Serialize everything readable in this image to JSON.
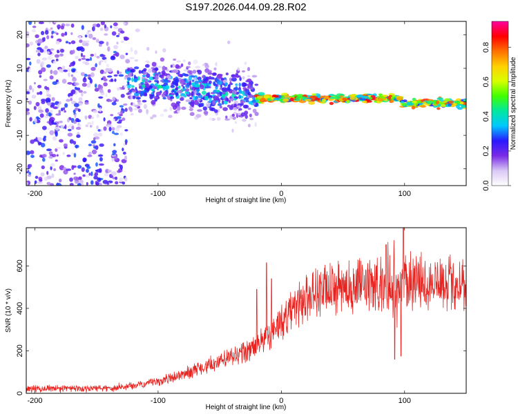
{
  "title": "S197.2026.044.09.28.R02",
  "chart_data": [
    {
      "type": "heatmap",
      "name": "spectrogram",
      "xlabel": "Height of straight line (km)",
      "ylabel": "Frequency (Hz)",
      "xlim": [
        -207,
        150
      ],
      "ylim": [
        -25,
        24
      ],
      "xticks": [
        -200,
        -100,
        0,
        100
      ],
      "yticks": [
        -20,
        -10,
        0,
        10,
        20
      ],
      "colorbar": {
        "label": "Normalized spectral amplitude",
        "range": [
          0,
          0.95
        ],
        "ticks": [
          0.0,
          0.2,
          0.4,
          0.6,
          0.8
        ],
        "colors": [
          "#ffffff",
          "#d9c8f5",
          "#7a2be6",
          "#2a18ff",
          "#00c8ff",
          "#00e8a0",
          "#40ff00",
          "#d8ff00",
          "#ffd000",
          "#ff7000",
          "#ff0000",
          "#ff00a0"
        ]
      },
      "regions": [
        {
          "x_range": [
            -207,
            -125
          ],
          "description": "broadband noise",
          "freq_center": 0,
          "freq_spread": 24,
          "amplitude": 0.12
        },
        {
          "x_range": [
            -125,
            -20
          ],
          "description": "signal emerging",
          "freq_center_start": 6,
          "freq_center_end": 1.5,
          "freq_spread": 4,
          "amplitude": 0.3
        },
        {
          "x_range": [
            -20,
            98
          ],
          "description": "strong signal",
          "freq_center": 1,
          "freq_spread": 1,
          "amplitude": 0.75
        },
        {
          "x_range": [
            98,
            150
          ],
          "description": "stable signal",
          "freq_center": -0.5,
          "freq_spread": 1,
          "amplitude": 0.7
        }
      ]
    },
    {
      "type": "line",
      "name": "snr",
      "xlabel": "Height of straight line (km)",
      "ylabel": "SNR (10 * v/v)",
      "xlim": [
        -207,
        150
      ],
      "ylim": [
        0,
        780
      ],
      "xticks": [
        -200,
        -100,
        0,
        100
      ],
      "yticks": [
        0,
        200,
        400,
        600
      ],
      "color": "#e8231f",
      "trend": [
        {
          "x": -207,
          "y": 20
        },
        {
          "x": -140,
          "y": 25
        },
        {
          "x": -120,
          "y": 35
        },
        {
          "x": -100,
          "y": 55
        },
        {
          "x": -80,
          "y": 90
        },
        {
          "x": -60,
          "y": 130
        },
        {
          "x": -40,
          "y": 170
        },
        {
          "x": -20,
          "y": 220
        },
        {
          "x": -5,
          "y": 300
        },
        {
          "x": 10,
          "y": 400
        },
        {
          "x": 25,
          "y": 470
        },
        {
          "x": 50,
          "y": 500
        },
        {
          "x": 75,
          "y": 510
        },
        {
          "x": 95,
          "y": 520
        },
        {
          "x": 100,
          "y": 530
        },
        {
          "x": 150,
          "y": 520
        }
      ],
      "peaks": [
        {
          "x": -12,
          "y": 615
        },
        {
          "x": -20,
          "y": 490
        },
        {
          "x": -8,
          "y": 540
        },
        {
          "x": 85,
          "y": 700
        },
        {
          "x": 92,
          "y": 760
        },
        {
          "x": 99,
          "y": 780
        }
      ],
      "dips": [
        {
          "x": 92,
          "y": 160
        },
        {
          "x": 97,
          "y": 175
        }
      ]
    }
  ]
}
